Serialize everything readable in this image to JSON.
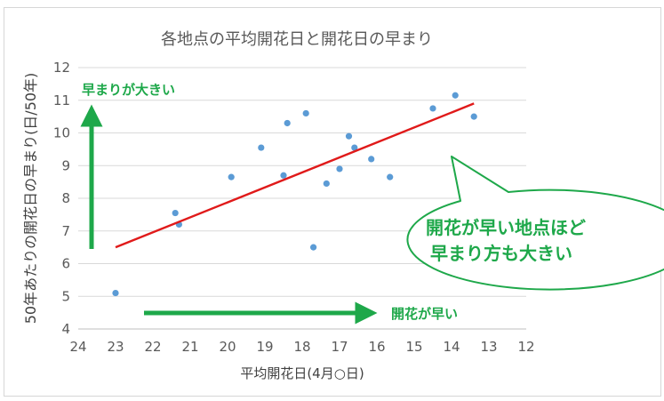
{
  "chart_data": {
    "type": "scatter",
    "title": "各地点の平均開花日と開花日の早まり",
    "xlabel": "平均開花日(4月○日)",
    "ylabel": "50年あたりの開花日の早まり(日/50年)",
    "xlim": [
      24,
      12
    ],
    "ylim": [
      4,
      12
    ],
    "x_reversed": true,
    "x_ticks": [
      "24",
      "23",
      "22",
      "21",
      "20",
      "19",
      "18",
      "17",
      "16",
      "15",
      "14",
      "13",
      "12"
    ],
    "y_ticks": [
      "4",
      "5",
      "6",
      "7",
      "8",
      "9",
      "10",
      "11",
      "12"
    ],
    "grid": {
      "horizontal": true,
      "vertical": false
    },
    "series": [
      {
        "points": [
          {
            "x": 23.0,
            "y": 5.1
          },
          {
            "x": 21.4,
            "y": 7.55
          },
          {
            "x": 21.3,
            "y": 7.2
          },
          {
            "x": 19.9,
            "y": 8.65
          },
          {
            "x": 19.1,
            "y": 9.55
          },
          {
            "x": 18.5,
            "y": 8.7
          },
          {
            "x": 18.4,
            "y": 10.3
          },
          {
            "x": 17.9,
            "y": 10.6
          },
          {
            "x": 17.7,
            "y": 6.5
          },
          {
            "x": 17.35,
            "y": 8.45
          },
          {
            "x": 17.0,
            "y": 8.9
          },
          {
            "x": 16.75,
            "y": 9.9
          },
          {
            "x": 16.6,
            "y": 9.55
          },
          {
            "x": 16.15,
            "y": 9.2
          },
          {
            "x": 15.65,
            "y": 8.65
          },
          {
            "x": 14.5,
            "y": 10.75
          },
          {
            "x": 13.9,
            "y": 11.15
          },
          {
            "x": 13.4,
            "y": 10.5
          }
        ]
      }
    ],
    "trendline": {
      "x": [
        23.0,
        13.4
      ],
      "y": [
        6.5,
        10.9
      ]
    },
    "annotations": {
      "vertical_arrow_label": "早まりが大きい",
      "horizontal_arrow_label": "開花が早い",
      "callout_line1": "開花が早い地点ほど",
      "callout_line2": "早まり方も大きい"
    }
  },
  "colors": {
    "point": "#5b9bd5",
    "trendline": "#e01a1a",
    "arrow": "#1ea84a",
    "callout_border": "#1ea84a",
    "text": "#595959",
    "grid": "#d9d9d9"
  }
}
